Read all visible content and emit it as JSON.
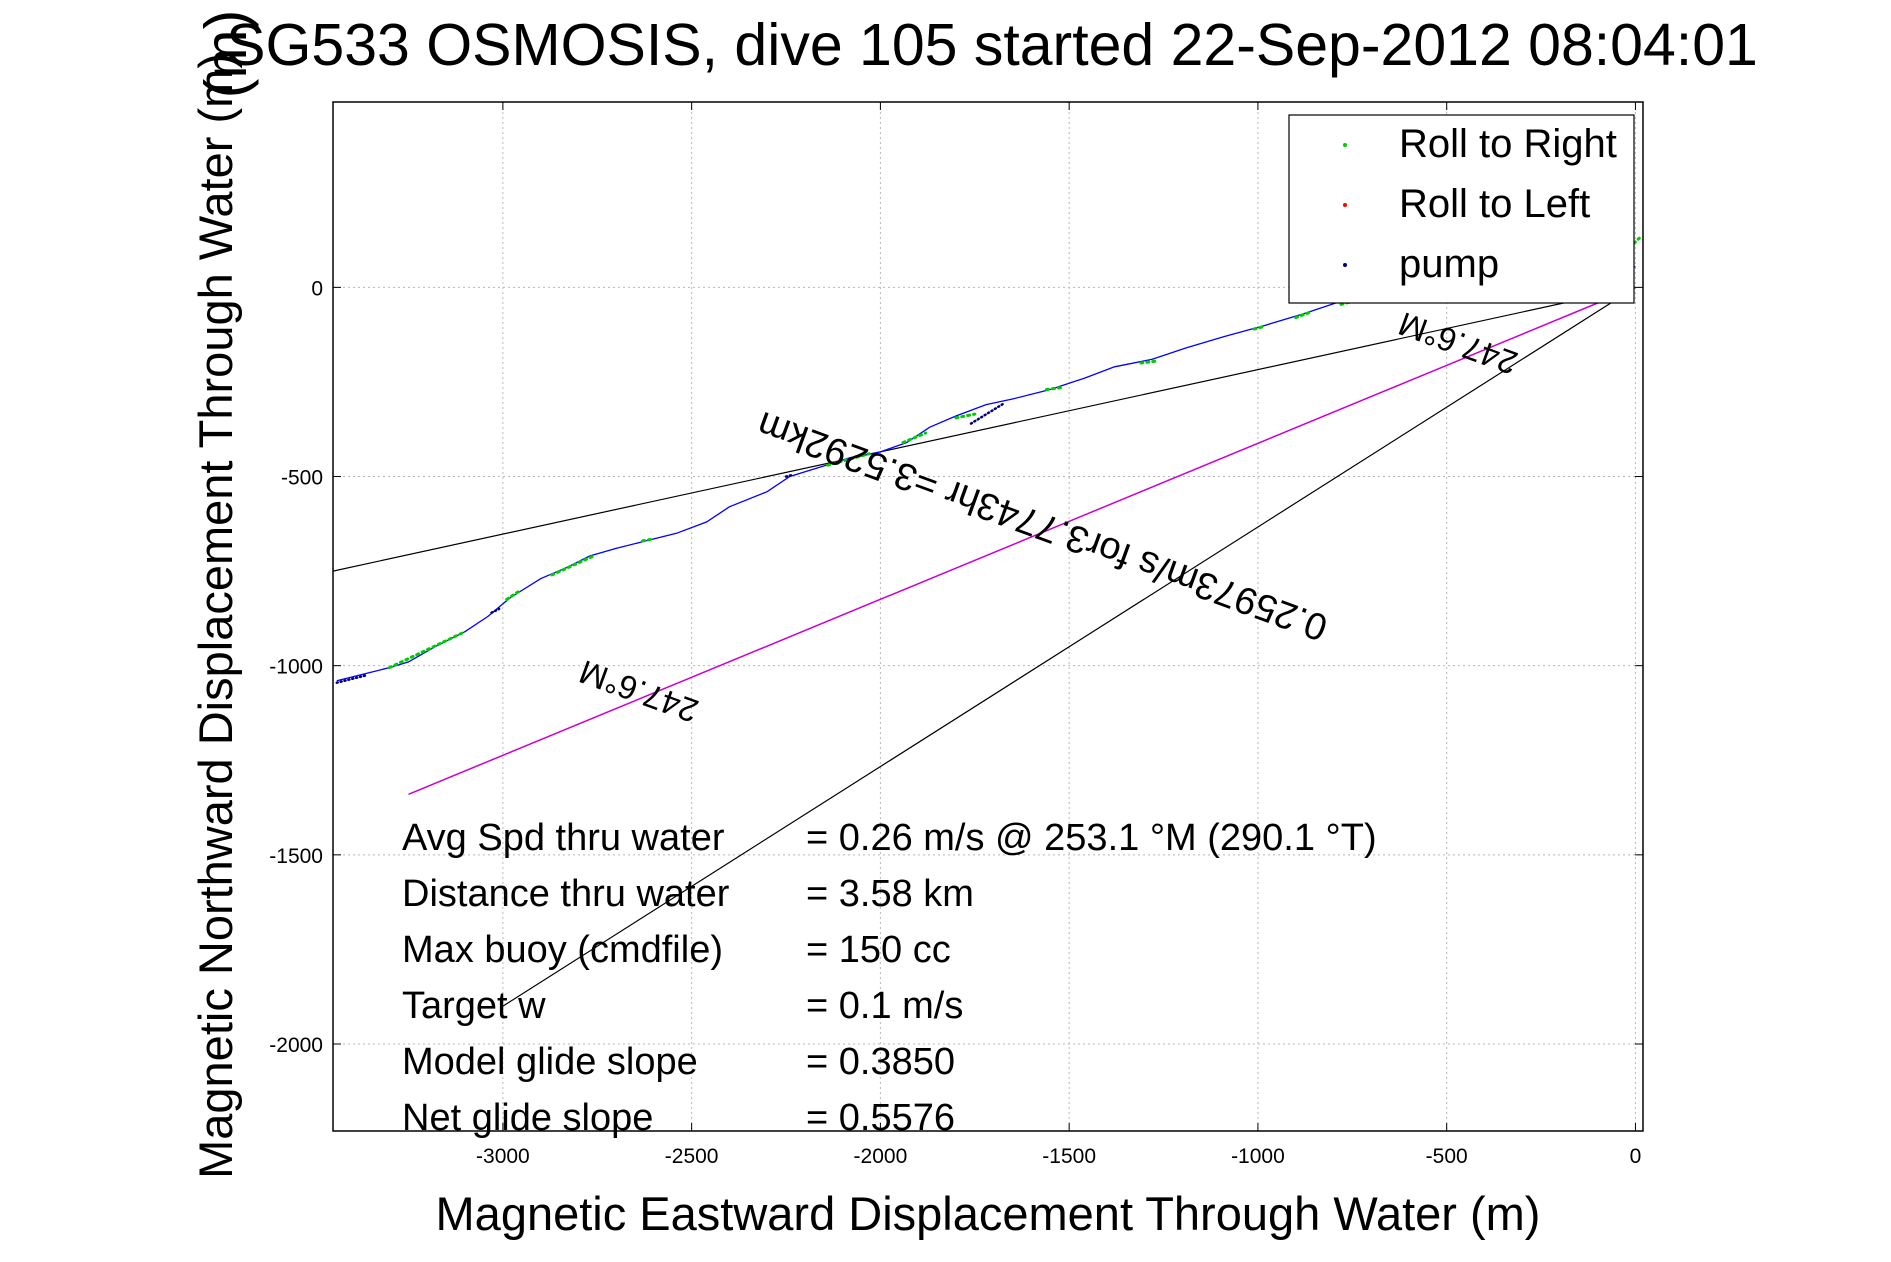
{
  "chart_data": {
    "type": "line",
    "title": "SG533 OSMOSIS, dive 105 started 22-Sep-2012 08:04:01",
    "title_overlap_text": "(m)",
    "xlabel": "Magnetic Eastward Displacement Through Water (m)",
    "ylabel": "Magnetic Northward Displacement Through Water (m)",
    "xlim": [
      -3450,
      20
    ],
    "ylim": [
      -2230,
      490
    ],
    "grid": true,
    "xticks": [
      -3000,
      -2500,
      -2000,
      -1500,
      -1000,
      -500,
      0
    ],
    "yticks": [
      0,
      -500,
      -1000,
      -1500,
      -2000
    ],
    "legend": {
      "placement": "top-right",
      "entries": [
        {
          "label": "Roll to Right",
          "color": "#00cc00"
        },
        {
          "label": "Roll to Left",
          "color": "#ff0000"
        },
        {
          "label": "pump",
          "color": "#000080"
        }
      ]
    },
    "track": {
      "name": "",
      "color": "#0000ff",
      "x": [
        -3440,
        -3360,
        -3300,
        -3250,
        -3180,
        -3100,
        -3040,
        -2980,
        -2900,
        -2830,
        -2770,
        -2700,
        -2620,
        -2540,
        -2460,
        -2400,
        -2300,
        -2240,
        -2160,
        -2080,
        -2000,
        -1930,
        -1870,
        -1800,
        -1720,
        -1650,
        -1550,
        -1460,
        -1380,
        -1280,
        -1190,
        -1090,
        -980,
        -880,
        -790,
        -700,
        -600,
        -500,
        -420,
        -300,
        -200,
        -100,
        -40,
        0
      ],
      "y": [
        -1040,
        -1020,
        -1005,
        -990,
        -950,
        -910,
        -870,
        -820,
        -770,
        -740,
        -710,
        -690,
        -670,
        -650,
        -620,
        -580,
        -540,
        -500,
        -475,
        -450,
        -435,
        -410,
        -370,
        -340,
        -310,
        -295,
        -270,
        -240,
        -210,
        -190,
        -160,
        -130,
        -100,
        -70,
        -40,
        -20,
        -10,
        0,
        10,
        20,
        30,
        40,
        50,
        55
      ]
    },
    "green_marks": [
      {
        "x": [
          -3300,
          -3100
        ],
        "y": [
          -1005,
          -910
        ]
      },
      {
        "x": [
          -2990,
          -2960
        ],
        "y": [
          -825,
          -805
        ]
      },
      {
        "x": [
          -2870,
          -2760
        ],
        "y": [
          -760,
          -710
        ]
      },
      {
        "x": [
          -2630,
          -2600
        ],
        "y": [
          -670,
          -665
        ]
      },
      {
        "x": [
          -2140,
          -2030
        ],
        "y": [
          -470,
          -440
        ]
      },
      {
        "x": [
          -1940,
          -1880
        ],
        "y": [
          -410,
          -385
        ]
      },
      {
        "x": [
          -1800,
          -1750
        ],
        "y": [
          -345,
          -335
        ]
      },
      {
        "x": [
          -1560,
          -1520
        ],
        "y": [
          -270,
          -265
        ]
      },
      {
        "x": [
          -1310,
          -1270
        ],
        "y": [
          -200,
          -195
        ]
      },
      {
        "x": [
          -1010,
          -990
        ],
        "y": [
          -110,
          -105
        ]
      },
      {
        "x": [
          -900,
          -860
        ],
        "y": [
          -80,
          -65
        ]
      },
      {
        "x": [
          -780,
          -740
        ],
        "y": [
          -45,
          -35
        ]
      },
      {
        "x": [
          -60,
          10
        ],
        "y": [
          60,
          130
        ]
      }
    ],
    "pump_marks": [
      {
        "x": [
          -3440,
          -3360
        ],
        "y": [
          -1045,
          -1025
        ]
      },
      {
        "x": [
          -1760,
          -1670
        ],
        "y": [
          -360,
          -305
        ]
      },
      {
        "x": [
          -3030,
          -3010
        ],
        "y": [
          -860,
          -850
        ]
      },
      {
        "x": [
          -2250,
          -2230
        ],
        "y": [
          -500,
          -495
        ]
      }
    ],
    "ref_lines": [
      {
        "name": "",
        "color": "#000000",
        "x": [
          -3450,
          0
        ],
        "y": [
          -750,
          0
        ]
      },
      {
        "name": "",
        "color": "#000000",
        "x": [
          -3000,
          0
        ],
        "y": [
          -1900,
          0
        ]
      },
      {
        "name": "",
        "color": "#cc00cc",
        "x": [
          -3250,
          0
        ],
        "y": [
          -1340,
          0
        ]
      }
    ],
    "annotations": [
      {
        "text": "247.6°M",
        "x": -2630,
        "y": -1040,
        "rotation": 200
      },
      {
        "text": "247.6°M",
        "x": -460,
        "y": -120,
        "rotation": 200
      },
      {
        "text": "0.25973m/s for3.7743hr =3.5292km",
        "x": -1560,
        "y": -600,
        "rotation": 200
      }
    ],
    "stats": [
      {
        "key": "Avg Spd thru water",
        "value": "=  0.26 m/s @ 253.1 °M (290.1 °T)"
      },
      {
        "key": "Distance thru water",
        "value": "=  3.58 km"
      },
      {
        "key": "Max buoy (cmdfile)",
        "value": "= 150 cc"
      },
      {
        "key": "Target w",
        "value": "= 0.1 m/s"
      },
      {
        "key": "Model glide slope",
        "value": "= 0.3850"
      },
      {
        "key": "Net glide slope",
        "value": "= 0.5576"
      }
    ]
  }
}
